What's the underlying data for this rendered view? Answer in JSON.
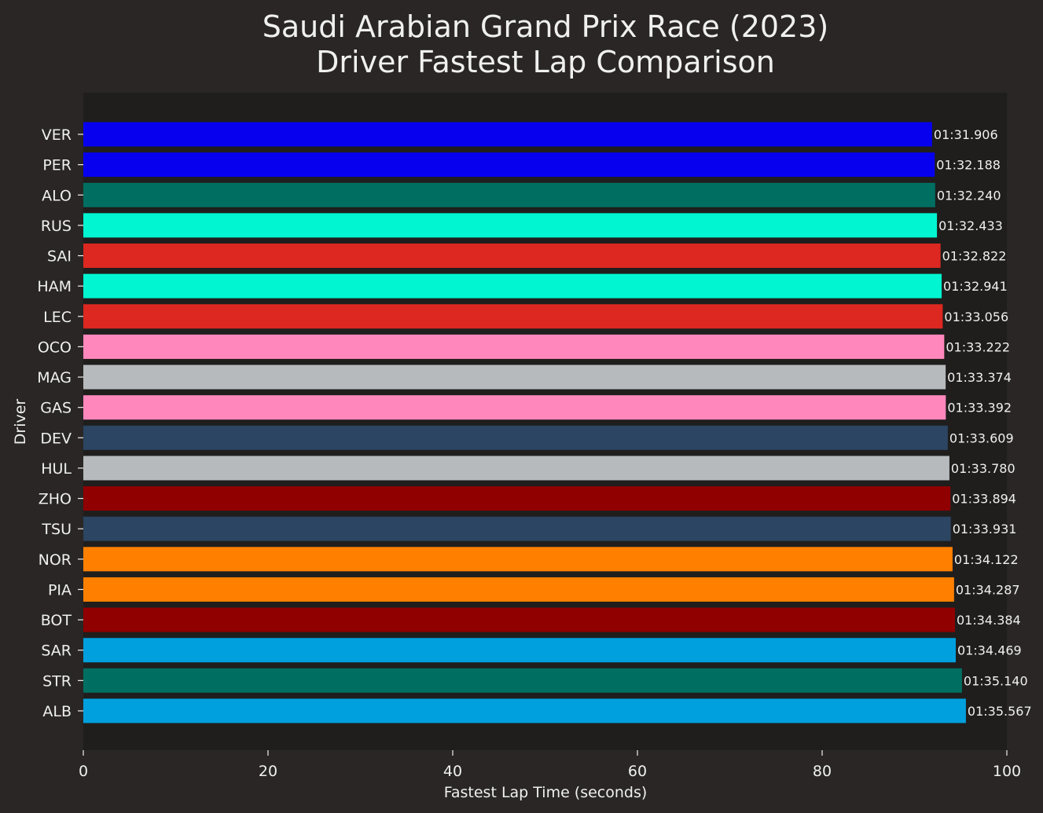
{
  "chart_data": {
    "type": "bar",
    "orientation": "horizontal",
    "title": "Saudi Arabian Grand Prix Race (2023)\nDriver Fastest Lap Comparison",
    "xlabel": "Fastest Lap Time (seconds)",
    "ylabel": "Driver",
    "xlim": [
      0,
      100
    ],
    "xticks": [
      0,
      20,
      40,
      60,
      80,
      100
    ],
    "grid": false,
    "colors": {
      "figure_bg": "#292625",
      "axes_bg": "#1f1e1d",
      "text": "#f0f0f0"
    },
    "bars": [
      {
        "driver": "VER",
        "value": 91.906,
        "label": "01:31.906",
        "color": "#0600ef"
      },
      {
        "driver": "PER",
        "value": 92.188,
        "label": "01:32.188",
        "color": "#0600ef"
      },
      {
        "driver": "ALO",
        "value": 92.24,
        "label": "01:32.240",
        "color": "#006f62"
      },
      {
        "driver": "RUS",
        "value": 92.433,
        "label": "01:32.433",
        "color": "#00f5d0"
      },
      {
        "driver": "SAI",
        "value": 92.822,
        "label": "01:32.822",
        "color": "#dc2820"
      },
      {
        "driver": "HAM",
        "value": 92.941,
        "label": "01:32.941",
        "color": "#00f5d0"
      },
      {
        "driver": "LEC",
        "value": 93.056,
        "label": "01:33.056",
        "color": "#dc2820"
      },
      {
        "driver": "OCO",
        "value": 93.222,
        "label": "01:33.222",
        "color": "#ff87bc"
      },
      {
        "driver": "MAG",
        "value": 93.374,
        "label": "01:33.374",
        "color": "#b6babd"
      },
      {
        "driver": "GAS",
        "value": 93.392,
        "label": "01:33.392",
        "color": "#ff87bc"
      },
      {
        "driver": "DEV",
        "value": 93.609,
        "label": "01:33.609",
        "color": "#2b4562"
      },
      {
        "driver": "HUL",
        "value": 93.78,
        "label": "01:33.780",
        "color": "#b6babd"
      },
      {
        "driver": "ZHO",
        "value": 93.894,
        "label": "01:33.894",
        "color": "#900000"
      },
      {
        "driver": "TSU",
        "value": 93.931,
        "label": "01:33.931",
        "color": "#2b4562"
      },
      {
        "driver": "NOR",
        "value": 94.122,
        "label": "01:34.122",
        "color": "#ff8000"
      },
      {
        "driver": "PIA",
        "value": 94.287,
        "label": "01:34.287",
        "color": "#ff8000"
      },
      {
        "driver": "BOT",
        "value": 94.384,
        "label": "01:34.384",
        "color": "#900000"
      },
      {
        "driver": "SAR",
        "value": 94.469,
        "label": "01:34.469",
        "color": "#00a0de"
      },
      {
        "driver": "STR",
        "value": 95.14,
        "label": "01:35.140",
        "color": "#006f62"
      },
      {
        "driver": "ALB",
        "value": 95.567,
        "label": "01:35.567",
        "color": "#00a0de"
      }
    ]
  }
}
